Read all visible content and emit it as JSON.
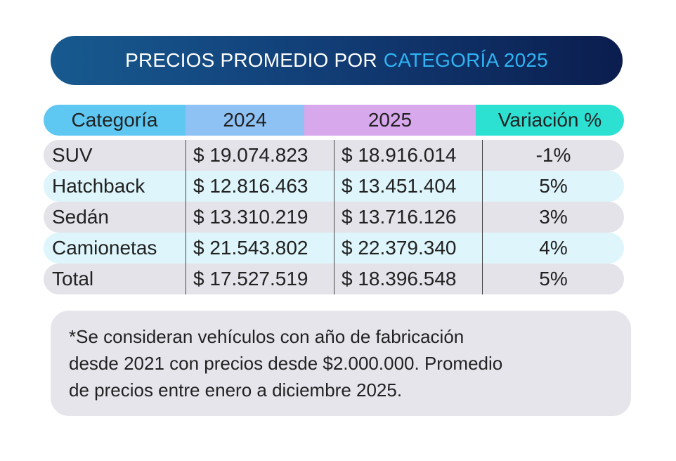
{
  "title": {
    "main": "PRECIOS PROMEDIO POR",
    "accent": "CATEGORÍA 2025",
    "accent_color": "#2fb3f2"
  },
  "chart_data": {
    "type": "table",
    "columns": [
      "Categoría",
      "2024",
      "2025",
      "Variación %"
    ],
    "rows": [
      {
        "categoria": "SUV",
        "y2024": "$ 19.074.823",
        "y2025": "$ 18.916.014",
        "variacion": "-1%"
      },
      {
        "categoria": "Hatchback",
        "y2024": "$ 12.816.463",
        "y2025": "$ 13.451.404",
        "variacion": "5%"
      },
      {
        "categoria": "Sedán",
        "y2024": "$ 13.310.219",
        "y2025": "$ 13.716.126",
        "variacion": "3%"
      },
      {
        "categoria": "Camionetas",
        "y2024": "$ 21.543.802",
        "y2025": "$ 22.379.340",
        "variacion": "4%"
      },
      {
        "categoria": "Total",
        "y2024": "$ 17.527.519",
        "y2025": "$ 18.396.548",
        "variacion": "5%"
      }
    ],
    "header_colors": [
      "#5ec8f2",
      "#8ec1f4",
      "#d8a8ec",
      "#2ce0d2"
    ]
  },
  "note": {
    "line1": "*Se consideran vehículos con año de fabricación",
    "line2": "desde 2021 con precios desde $2.000.000. Promedio",
    "line3": "de precios entre enero a diciembre 2025."
  }
}
